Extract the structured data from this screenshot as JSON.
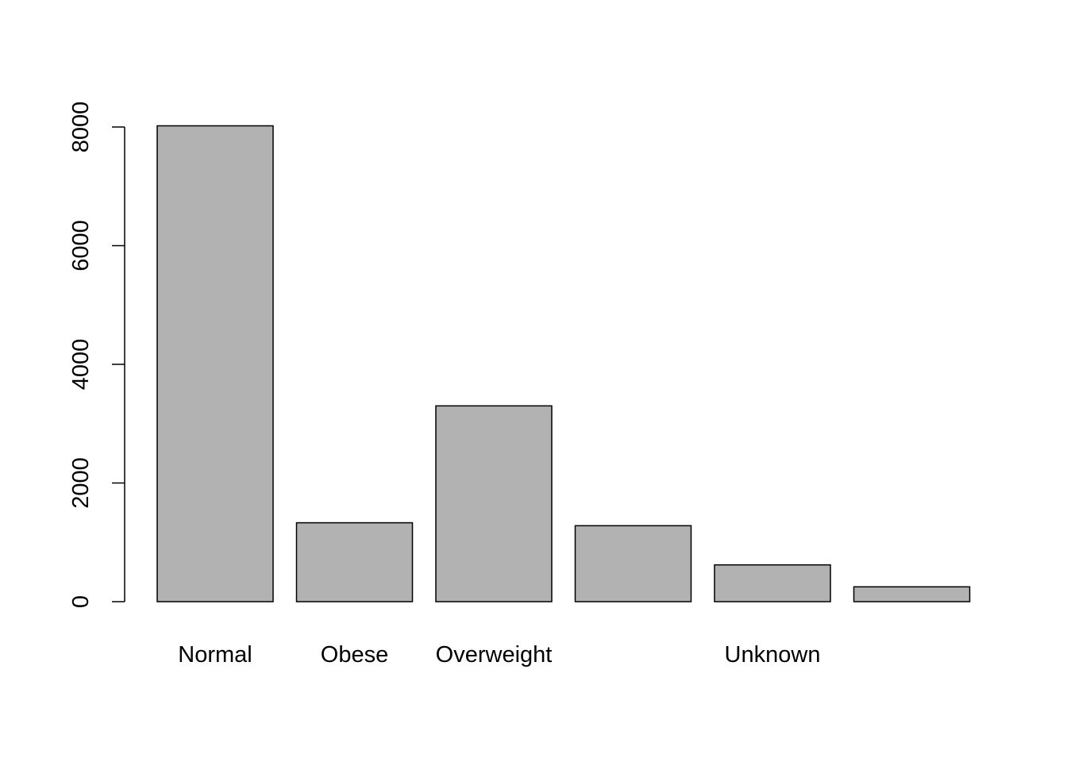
{
  "chart_data": {
    "type": "bar",
    "title": "",
    "xlabel": "",
    "ylabel": "",
    "categories": [
      "Normal",
      "Obese",
      "Overweight",
      "",
      "Unknown",
      ""
    ],
    "values": [
      8020,
      1330,
      3300,
      1280,
      620,
      250
    ],
    "ylim": [
      0,
      8000
    ],
    "yticks": [
      0,
      2000,
      4000,
      6000,
      8000
    ],
    "ytick_labels": [
      "0",
      "2000",
      "4000",
      "6000",
      "8000"
    ],
    "grid": false,
    "legend": "none",
    "colors": {
      "bar_fill": "#b2b2b2",
      "bar_stroke": "#000000",
      "axis": "#000000",
      "text": "#000000",
      "background": "#ffffff"
    }
  }
}
